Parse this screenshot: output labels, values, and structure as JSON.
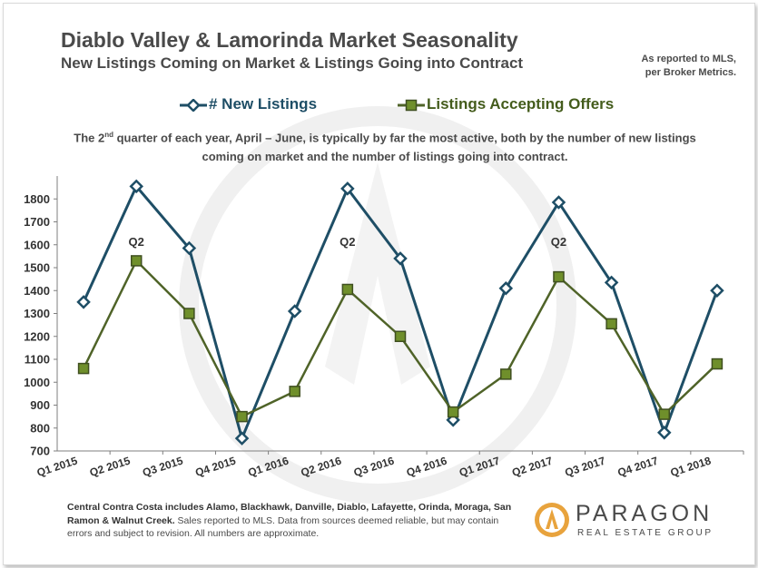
{
  "header": {
    "title": "Diablo Valley & Lamorinda Market Seasonality",
    "subtitle": "New Listings Coming on Market & Listings Going into Contract",
    "reported_line1": "As reported to MLS,",
    "reported_line2": "per Broker Metrics."
  },
  "note": {
    "part1": "The 2",
    "sup": "nd",
    "part2": " quarter of each year, April – June, is typically by far the most active, both by the number of new listings coming on market and the number of listings going into contract."
  },
  "footer": {
    "bold_text": "Central Contra Costa includes Alamo, Blackhawk, Danville, Diablo, Lafayette, Orinda, Moraga, San Ramon & Walnut Creek.",
    "text": " Sales reported to MLS. Data from sources deemed reliable, but may contain errors and subject to revision. All numbers are approximate."
  },
  "logo": {
    "name": "PARAGON",
    "sub": "REAL ESTATE GROUP"
  },
  "colors": {
    "new_listings": "#1e4e66",
    "offers_line": "#4f6328",
    "offers_marker": "#6f8f2b",
    "text": "#4a4a4a"
  },
  "chart_data": {
    "type": "line",
    "categories": [
      "Q1 2015",
      "Q2 2015",
      "Q3 2015",
      "Q4 2015",
      "Q1 2016",
      "Q2 2016",
      "Q3 2016",
      "Q4 2016",
      "Q1 2017",
      "Q2 2017",
      "Q3 2017",
      "Q4 2017",
      "Q1 2018"
    ],
    "series": [
      {
        "name": "# New Listings",
        "marker": "diamond",
        "values": [
          1350,
          1855,
          1585,
          755,
          1310,
          1845,
          1540,
          835,
          1410,
          1785,
          1435,
          780,
          1400
        ]
      },
      {
        "name": "Listings Accepting Offers",
        "marker": "square",
        "values": [
          1060,
          1530,
          1300,
          850,
          960,
          1405,
          1200,
          870,
          1035,
          1460,
          1255,
          860,
          1080
        ]
      }
    ],
    "ylim": [
      700,
      1900
    ],
    "yticks": [
      700,
      800,
      900,
      1000,
      1100,
      1200,
      1300,
      1400,
      1500,
      1600,
      1700,
      1800
    ],
    "annotations": [
      {
        "text": "Q2",
        "category": "Q2 2015",
        "value": 1615
      },
      {
        "text": "Q2",
        "category": "Q2 2016",
        "value": 1615
      },
      {
        "text": "Q2",
        "category": "Q2 2017",
        "value": 1615
      }
    ],
    "grid": false,
    "legend_position": "top"
  }
}
